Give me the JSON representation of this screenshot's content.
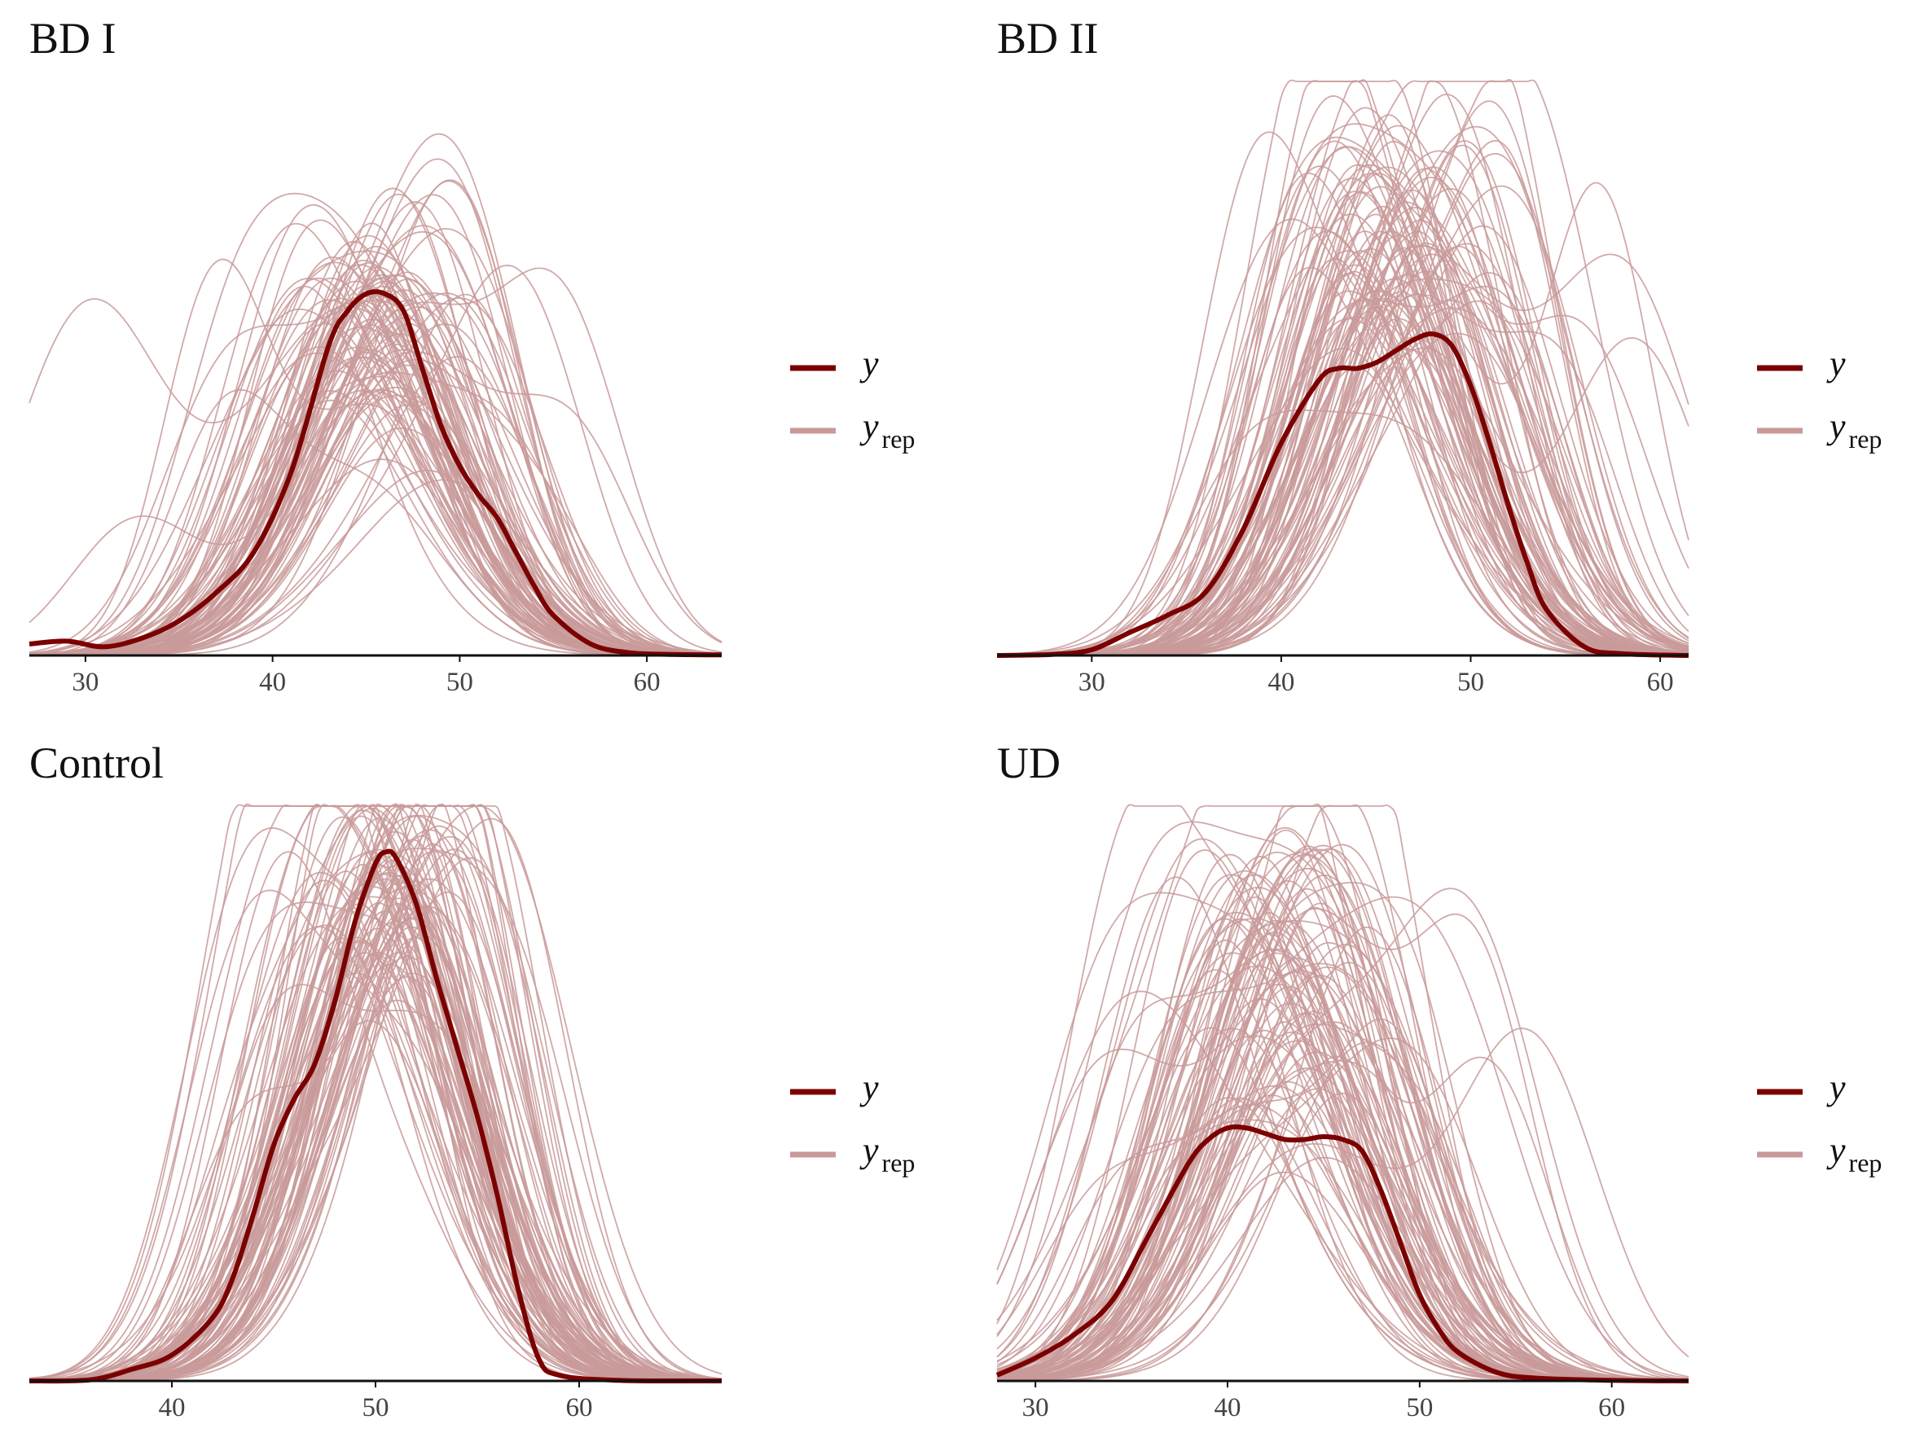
{
  "chart_data": [
    {
      "type": "line",
      "title": "BD I",
      "xlabel": "",
      "ylabel": "",
      "xlim": [
        27,
        64
      ],
      "xticks": [
        30,
        40,
        50,
        60
      ],
      "y_axis_visible": false,
      "grid": false,
      "legend_placement": "right",
      "legend": [
        {
          "name": "y",
          "subscript": "",
          "color": "#7b0000"
        },
        {
          "name": "y",
          "subscript": "rep",
          "color": "#c99a9a"
        }
      ],
      "series": [
        {
          "name": "y",
          "role": "observed",
          "x": [
            27,
            29,
            31,
            33,
            35,
            37,
            39,
            41,
            43,
            44,
            45,
            46,
            47,
            48,
            49,
            50,
            51,
            52,
            53,
            54,
            55,
            57,
            59,
            61,
            64
          ],
          "y": [
            0.02,
            0.025,
            0.015,
            0.03,
            0.06,
            0.11,
            0.18,
            0.32,
            0.54,
            0.6,
            0.63,
            0.63,
            0.6,
            0.5,
            0.4,
            0.33,
            0.28,
            0.24,
            0.18,
            0.12,
            0.07,
            0.02,
            0.005,
            0.002,
            0.001
          ]
        },
        {
          "name": "y_rep",
          "role": "replicated",
          "draws": 100,
          "center": 45.3,
          "center_spread": 1.4,
          "sd": 4.8,
          "sd_spread": 0.35,
          "peak_mean": 0.6,
          "peak_spread": 0.1
        }
      ]
    },
    {
      "type": "line",
      "title": "BD II",
      "xlabel": "",
      "ylabel": "",
      "xlim": [
        25,
        61.5
      ],
      "xticks": [
        30,
        40,
        50,
        60
      ],
      "y_axis_visible": false,
      "grid": false,
      "legend_placement": "right",
      "legend": [
        {
          "name": "y",
          "subscript": "",
          "color": "#7b0000"
        },
        {
          "name": "y",
          "subscript": "rep",
          "color": "#c99a9a"
        }
      ],
      "series": [
        {
          "name": "y",
          "role": "observed",
          "x": [
            25,
            28,
            30,
            32,
            34,
            36,
            38,
            40,
            42,
            43,
            44,
            45,
            46,
            47,
            48,
            49,
            50,
            51,
            52,
            53,
            54,
            56,
            58,
            61.5
          ],
          "y": [
            0.0,
            0.002,
            0.01,
            0.04,
            0.07,
            0.11,
            0.22,
            0.37,
            0.48,
            0.5,
            0.5,
            0.51,
            0.53,
            0.55,
            0.56,
            0.54,
            0.47,
            0.37,
            0.26,
            0.16,
            0.08,
            0.015,
            0.003,
            0.0
          ]
        },
        {
          "name": "y_rep",
          "role": "replicated",
          "draws": 100,
          "center": 46,
          "center_spread": 1.5,
          "sd": 4.6,
          "sd_spread": 0.4,
          "peak_mean": 0.72,
          "peak_spread": 0.12
        }
      ]
    },
    {
      "type": "line",
      "title": "Control",
      "xlabel": "",
      "ylabel": "",
      "xlim": [
        33,
        67
      ],
      "xticks": [
        40,
        50,
        60
      ],
      "y_axis_visible": false,
      "grid": false,
      "legend_placement": "right",
      "legend": [
        {
          "name": "y",
          "subscript": "",
          "color": "#7b0000"
        },
        {
          "name": "y",
          "subscript": "rep",
          "color": "#c99a9a"
        }
      ],
      "series": [
        {
          "name": "y",
          "role": "observed",
          "x": [
            33,
            36,
            38,
            40,
            42,
            43,
            44,
            45,
            46,
            47,
            48,
            49,
            50,
            50.5,
            51,
            52,
            53,
            54,
            55,
            56,
            57,
            58,
            59,
            62,
            67
          ],
          "y": [
            0.0,
            0.002,
            0.02,
            0.045,
            0.11,
            0.18,
            0.29,
            0.41,
            0.49,
            0.55,
            0.66,
            0.8,
            0.9,
            0.92,
            0.91,
            0.83,
            0.7,
            0.58,
            0.46,
            0.32,
            0.16,
            0.04,
            0.01,
            0.001,
            0.0
          ]
        },
        {
          "name": "y_rep",
          "role": "replicated",
          "draws": 100,
          "center": 50.5,
          "center_spread": 1.0,
          "sd": 4.3,
          "sd_spread": 0.3,
          "peak_mean": 0.85,
          "peak_spread": 0.1
        }
      ]
    },
    {
      "type": "line",
      "title": "UD",
      "xlabel": "",
      "ylabel": "",
      "xlim": [
        28,
        64
      ],
      "xticks": [
        30,
        40,
        50,
        60
      ],
      "y_axis_visible": false,
      "grid": false,
      "legend_placement": "right",
      "legend": [
        {
          "name": "y",
          "subscript": "",
          "color": "#7b0000"
        },
        {
          "name": "y",
          "subscript": "rep",
          "color": "#c99a9a"
        }
      ],
      "series": [
        {
          "name": "y",
          "role": "observed",
          "x": [
            28,
            30,
            32,
            34,
            36,
            38,
            39,
            40,
            41,
            42,
            43,
            44,
            45,
            46,
            47,
            48,
            49,
            50,
            51,
            52,
            54,
            56,
            60,
            64
          ],
          "y": [
            0.01,
            0.04,
            0.08,
            0.14,
            0.26,
            0.38,
            0.42,
            0.44,
            0.44,
            0.43,
            0.42,
            0.42,
            0.425,
            0.42,
            0.4,
            0.33,
            0.24,
            0.15,
            0.09,
            0.05,
            0.015,
            0.005,
            0.001,
            0.0
          ]
        },
        {
          "name": "y_rep",
          "role": "replicated",
          "draws": 100,
          "center": 43,
          "center_spread": 1.6,
          "sd": 4.8,
          "sd_spread": 0.45,
          "peak_mean": 0.72,
          "peak_spread": 0.14
        }
      ]
    }
  ]
}
